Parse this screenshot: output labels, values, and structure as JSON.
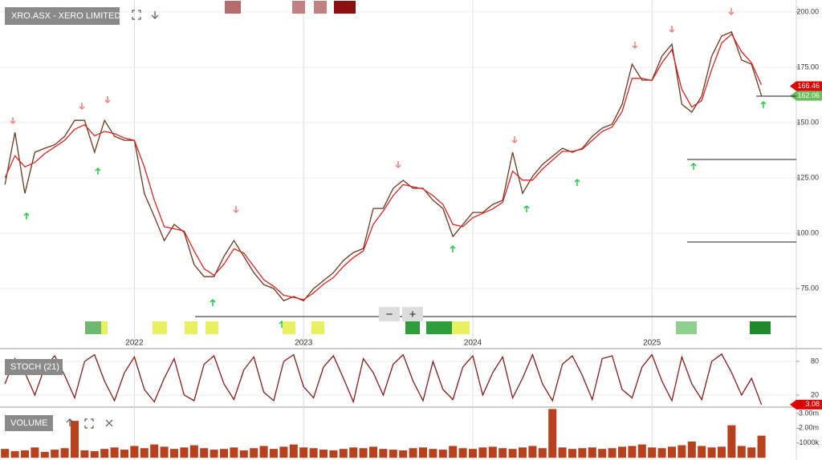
{
  "chart_data": [
    {
      "type": "line",
      "title": "XRO.ASX - XERO LIMITED",
      "categories": [
        null,
        null,
        null,
        null,
        null,
        null,
        null,
        null,
        null,
        null,
        null,
        null,
        null,
        "2022",
        null,
        null,
        null,
        null,
        null,
        null,
        null,
        null,
        null,
        null,
        null,
        null,
        null,
        null,
        null,
        null,
        "2023",
        null,
        null,
        null,
        null,
        null,
        null,
        null,
        null,
        null,
        null,
        null,
        null,
        null,
        null,
        null,
        null,
        "2024",
        null,
        null,
        null,
        null,
        null,
        null,
        null,
        null,
        null,
        null,
        null,
        null,
        null,
        null,
        null,
        null,
        null,
        "2025",
        null,
        null,
        null,
        null,
        null,
        null,
        null,
        null,
        null,
        null,
        null,
        null,
        null,
        null
      ],
      "series": [
        {
          "color": "#6b3a1c",
          "values": [
            122,
            145.6,
            118,
            136.6,
            138.4,
            140,
            143.8,
            151,
            151,
            136.6,
            151,
            143.8,
            142,
            142,
            118,
            107.6,
            96.7,
            104,
            100.4,
            85.9,
            80.4,
            80.4,
            89.5,
            96.7,
            89.5,
            82.2,
            76.8,
            75,
            69.5,
            71.4,
            69.5,
            75,
            78.6,
            82.2,
            87.7,
            91.3,
            93.1,
            111.2,
            111.2,
            120.3,
            123.9,
            120.3,
            120.3,
            114.9,
            111.2,
            98.5,
            104,
            109.4,
            109.4,
            113,
            114.9,
            136.6,
            118,
            125.7,
            131.1,
            134.8,
            138.4,
            136.6,
            138.4,
            143.8,
            147.5,
            149.3,
            158.3,
            176.4,
            169.2,
            169.2,
            180,
            185.5,
            158.3,
            154.7,
            162,
            180,
            189.1,
            191,
            178.3,
            176.4,
            162.1,
            null,
            null,
            null
          ]
        },
        {
          "color": "#e32222",
          "values": [
            125,
            135,
            130,
            132,
            136,
            139,
            142,
            147,
            149,
            144,
            146,
            145,
            143,
            142,
            130,
            115,
            103,
            102,
            101,
            92,
            84,
            81,
            86,
            93,
            91,
            85,
            79,
            76,
            72,
            71,
            70,
            73,
            77,
            80,
            85,
            89,
            92,
            104,
            110,
            117,
            122,
            121,
            120,
            117,
            113,
            104,
            103,
            107,
            109,
            111,
            114,
            128,
            124,
            124,
            129,
            133,
            137,
            137,
            138,
            142,
            146,
            148,
            155,
            170,
            170,
            169,
            177,
            183,
            165,
            157,
            160,
            174,
            186,
            190,
            182,
            177,
            167,
            null,
            null,
            null
          ]
        }
      ],
      "ylim": [
        53.3,
        205.4
      ],
      "yticks": [
        {
          "value": 75,
          "label": "75.00"
        },
        {
          "value": 100,
          "label": "100.00"
        },
        {
          "value": 125,
          "label": "125.00"
        },
        {
          "value": 150,
          "label": "150.00"
        },
        {
          "value": 175,
          "label": "175.00"
        },
        {
          "value": 200,
          "label": "200.00"
        }
      ],
      "grid": true,
      "tags": [
        {
          "value": 166.46,
          "color": "#e00000"
        },
        {
          "value": 162.06,
          "color": "#6cbf5c"
        }
      ]
    },
    {
      "type": "line",
      "title": "STOCH (21)",
      "series": [
        {
          "color": "#8b1a1a",
          "values": [
            40,
            85,
            60,
            20,
            70,
            90,
            55,
            15,
            80,
            92,
            45,
            10,
            60,
            88,
            30,
            8,
            50,
            85,
            20,
            10,
            75,
            90,
            40,
            12,
            65,
            88,
            25,
            10,
            80,
            92,
            35,
            15,
            70,
            90,
            50,
            8,
            85,
            60,
            20,
            75,
            92,
            45,
            10,
            80,
            30,
            12,
            70,
            90,
            20,
            60,
            88,
            15,
            50,
            92,
            40,
            10,
            75,
            90,
            55,
            12,
            85,
            90,
            30,
            15,
            70,
            92,
            45,
            10,
            88,
            40,
            12,
            80,
            93,
            60,
            20,
            50,
            3.08,
            null,
            null,
            null
          ]
        }
      ],
      "ylim": [
        0,
        100
      ],
      "yticks": [
        20,
        80
      ],
      "grid": true,
      "tags": [
        {
          "value": 3.08,
          "color": "#e00000"
        }
      ]
    },
    {
      "type": "bar",
      "title": "VOLUME",
      "color": "#b8401c",
      "values": [
        600000,
        450000,
        500000,
        700000,
        400000,
        550000,
        650000,
        2500000,
        500000,
        450000,
        600000,
        700000,
        550000,
        800000,
        650000,
        900000,
        750000,
        600000,
        700000,
        850000,
        650000,
        550000,
        600000,
        700000,
        500000,
        650000,
        800000,
        600000,
        750000,
        900000,
        700000,
        650000,
        550000,
        500000,
        600000,
        700000,
        650000,
        750000,
        600000,
        550000,
        500000,
        650000,
        700000,
        600000,
        550000,
        800000,
        650000,
        600000,
        700000,
        750000,
        650000,
        600000,
        700000,
        800000,
        650000,
        3300000,
        700000,
        600000,
        650000,
        700000,
        600000,
        650000,
        750000,
        800000,
        900000,
        700000,
        650000,
        750000,
        850000,
        1100000,
        800000,
        700000,
        750000,
        2200000,
        800000,
        700000,
        1500000,
        null,
        null,
        null
      ],
      "ylim": [
        -150000,
        3430000
      ],
      "yticks": [
        {
          "value": 1000000,
          "label": "1000k"
        },
        {
          "value": 2000000,
          "label": "2.00m"
        },
        {
          "value": 3000000,
          "label": "3.00m"
        }
      ]
    }
  ],
  "ui": {
    "zoom_out": "−",
    "zoom_in": "+"
  }
}
